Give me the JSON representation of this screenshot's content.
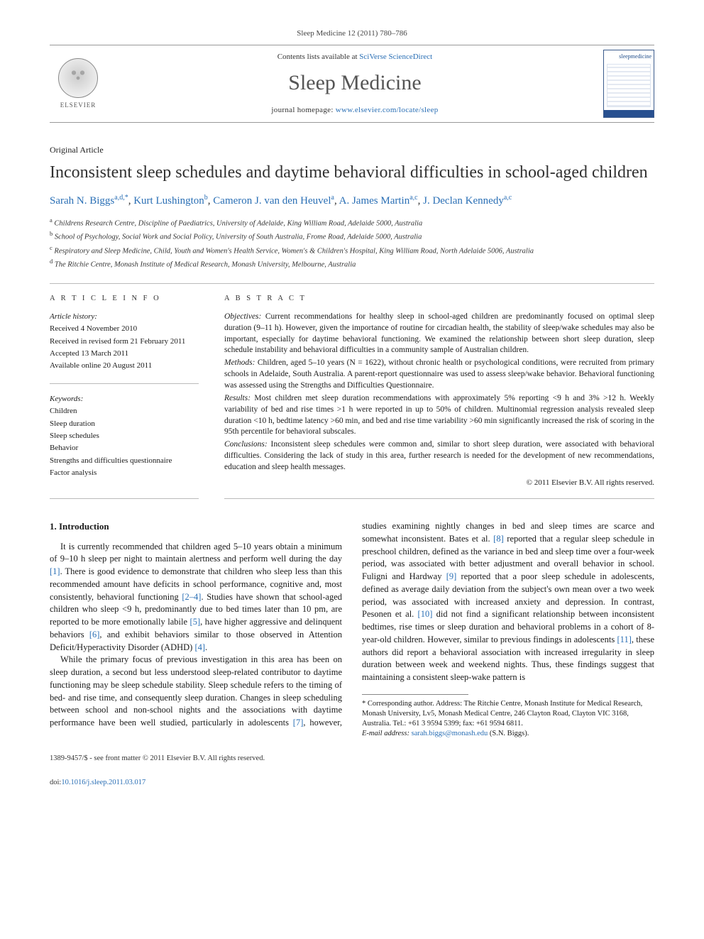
{
  "citation": "Sleep Medicine 12 (2011) 780–786",
  "masthead": {
    "contents_prefix": "Contents lists available at ",
    "contents_link": "SciVerse ScienceDirect",
    "journal": "Sleep Medicine",
    "homepage_prefix": "journal homepage: ",
    "homepage_url": "www.elsevier.com/locate/sleep",
    "publisher": "ELSEVIER",
    "cover_word": "sleepmedicine"
  },
  "article": {
    "type": "Original Article",
    "title": "Inconsistent sleep schedules and daytime behavioral difficulties in school-aged children",
    "authors_html": [
      {
        "name": "Sarah N. Biggs",
        "aff": "a,d,",
        "corr": true
      },
      {
        "name": "Kurt Lushington",
        "aff": "b"
      },
      {
        "name": "Cameron J. van den Heuvel",
        "aff": "a"
      },
      {
        "name": "A. James Martin",
        "aff": "a,c"
      },
      {
        "name": "J. Declan Kennedy",
        "aff": "a,c"
      }
    ],
    "affiliations": [
      {
        "sup": "a",
        "text": "Childrens Research Centre, Discipline of Paediatrics, University of Adelaide, King William Road, Adelaide 5000, Australia"
      },
      {
        "sup": "b",
        "text": "School of Psychology, Social Work and Social Policy, University of South Australia, Frome Road, Adelaide 5000, Australia"
      },
      {
        "sup": "c",
        "text": "Respiratory and Sleep Medicine, Child, Youth and Women's Health Service, Women's & Children's Hospital, King William Road, North Adelaide 5006, Australia"
      },
      {
        "sup": "d",
        "text": "The Ritchie Centre, Monash Institute of Medical Research, Monash University, Melbourne, Australia"
      }
    ]
  },
  "info": {
    "heading": "A R T I C L E   I N F O",
    "history_label": "Article history:",
    "history": [
      "Received 4 November 2010",
      "Received in revised form 21 February 2011",
      "Accepted 13 March 2011",
      "Available online 20 August 2011"
    ],
    "keywords_label": "Keywords:",
    "keywords": [
      "Children",
      "Sleep duration",
      "Sleep schedules",
      "Behavior",
      "Strengths and difficulties questionnaire",
      "Factor analysis"
    ]
  },
  "abstract": {
    "heading": "A B S T R A C T",
    "objectives": "Current recommendations for healthy sleep in school-aged children are predominantly focused on optimal sleep duration (9–11 h). However, given the importance of routine for circadian health, the stability of sleep/wake schedules may also be important, especially for daytime behavioral functioning. We examined the relationship between short sleep duration, sleep schedule instability and behavioral difficulties in a community sample of Australian children.",
    "methods": "Children, aged 5–10 years (N = 1622), without chronic health or psychological conditions, were recruited from primary schools in Adelaide, South Australia. A parent-report questionnaire was used to assess sleep/wake behavior. Behavioral functioning was assessed using the Strengths and Difficulties Questionnaire.",
    "results": "Most children met sleep duration recommendations with approximately 5% reporting <9 h and 3% >12 h. Weekly variability of bed and rise times >1 h were reported in up to 50% of children. Multinomial regression analysis revealed sleep duration <10 h, bedtime latency >60 min, and bed and rise time variability >60 min significantly increased the risk of scoring in the 95th percentile for behavioral subscales.",
    "conclusions": "Inconsistent sleep schedules were common and, similar to short sleep duration, were associated with behavioral difficulties. Considering the lack of study in this area, further research is needed for the development of new recommendations, education and sleep health messages.",
    "copyright": "© 2011 Elsevier B.V. All rights reserved."
  },
  "body": {
    "h1": "1. Introduction",
    "p1": "It is currently recommended that children aged 5–10 years obtain a minimum of 9–10 h sleep per night to maintain alertness and perform well during the day [1]. There is good evidence to demonstrate that children who sleep less than this recommended amount have deficits in school performance, cognitive and, most consistently, behavioral functioning [2–4]. Studies have shown that school-aged children who sleep <9 h, predominantly due to bed times later than 10 pm, are reported to be more emotionally labile [5], have higher aggressive and delinquent behaviors [6], and exhibit behaviors similar to those observed in Attention Deficit/Hyperactivity Disorder (ADHD) [4].",
    "p2": "While the primary focus of previous investigation in this area has been on sleep duration, a second but less understood sleep-related contributor to daytime functioning may be sleep schedule stability. Sleep schedule refers to the timing of bed- and rise time, and consequently sleep duration. Changes in sleep scheduling between school and non-school nights and the associations with daytime performance have been well studied, particularly in adolescents [7], however, studies examining nightly changes in bed and sleep times are scarce and somewhat inconsistent. Bates et al. [8] reported that a regular sleep schedule in preschool children, defined as the variance in bed and sleep time over a four-week period, was associated with better adjustment and overall behavior in school. Fuligni and Hardway [9] reported that a poor sleep schedule in adolescents, defined as average daily deviation from the subject's own mean over a two week period, was associated with increased anxiety and depression. In contrast, Pesonen et al. [10] did not find a significant relationship between inconsistent bedtimes, rise times or sleep duration and behavioral problems in a cohort of 8-year-old children. However, similar to previous findings in adolescents [11], these authors did report a behavioral association with increased irregularity in sleep duration between week and weekend nights. Thus, these findings suggest that maintaining a consistent sleep-wake pattern is"
  },
  "footnote": {
    "corr": "* Corresponding author. Address: The Ritchie Centre, Monash Institute for Medical Research, Monash University, Lv5, Monash Medical Centre, 246 Clayton Road, Clayton VIC 3168, Australia. Tel.: +61 3 9594 5399; fax: +61 9594 6811.",
    "email_label": "E-mail address:",
    "email": "sarah.biggs@monash.edu",
    "email_tail": " (S.N. Biggs)."
  },
  "footer": {
    "line1": "1389-9457/$ - see front matter © 2011 Elsevier B.V. All rights reserved.",
    "doi_label": "doi:",
    "doi": "10.1016/j.sleep.2011.03.017"
  },
  "colors": {
    "link": "#2a6fb5",
    "rule": "#bbbbbb",
    "body_text": "#1a1a1a"
  }
}
